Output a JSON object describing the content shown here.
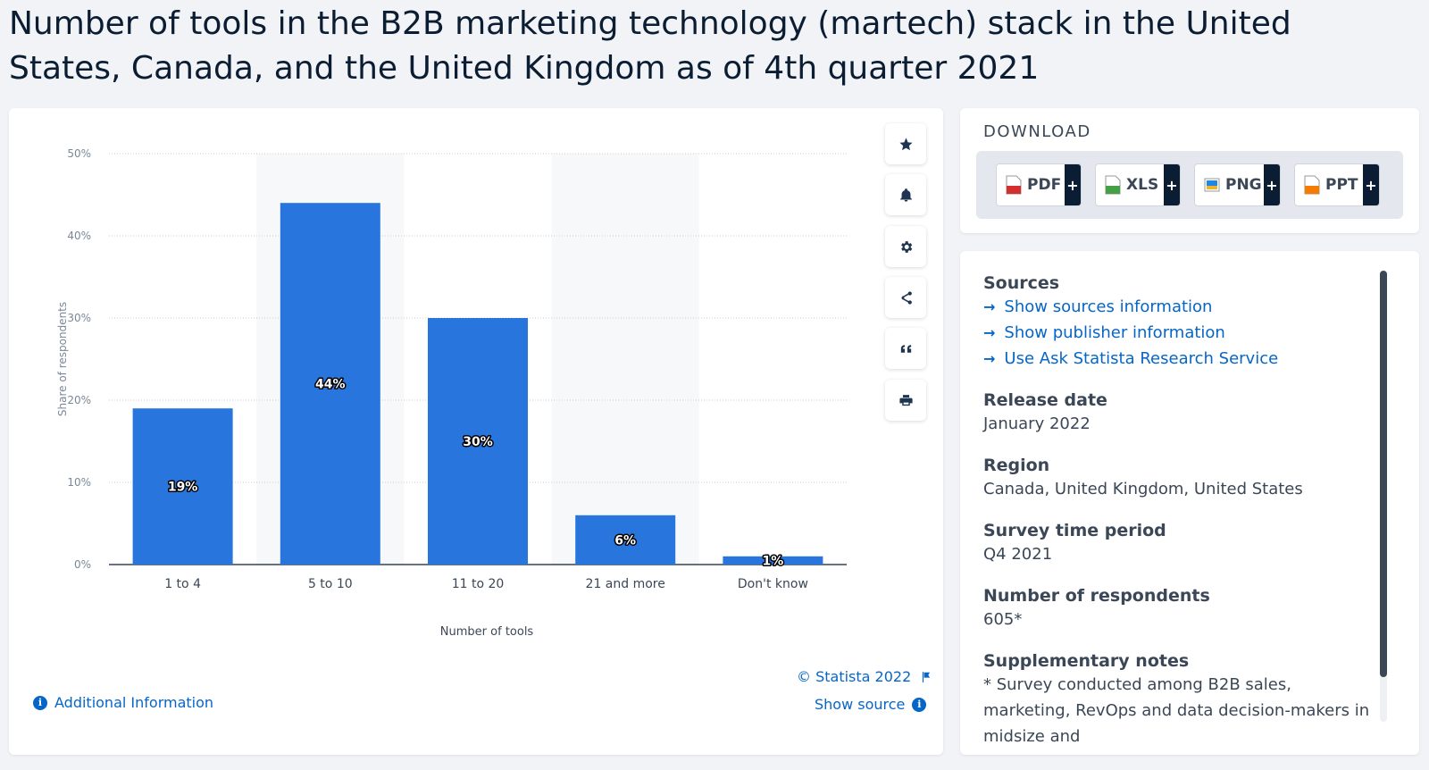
{
  "title": "Number of tools in the B2B marketing technology (martech) stack in the United States, Canada, and the United Kingdom as of 4th quarter 2021",
  "chart_data": {
    "type": "bar",
    "categories": [
      "1 to 4",
      "5 to 10",
      "11 to 20",
      "21 and more",
      "Don't know"
    ],
    "values": [
      19,
      44,
      30,
      6,
      1
    ],
    "value_labels": [
      "19%",
      "44%",
      "30%",
      "6%",
      "1%"
    ],
    "xlabel": "Number of tools",
    "ylabel": "Share of respondents",
    "ylim": [
      0,
      50
    ],
    "yticks": [
      "0%",
      "10%",
      "20%",
      "30%",
      "40%",
      "50%"
    ],
    "bar_color": "#2876dd",
    "grid": true
  },
  "tools": [
    "star-icon",
    "bell-icon",
    "gear-icon",
    "share-icon",
    "quote-icon",
    "print-icon"
  ],
  "footer": {
    "copyright": "© Statista 2022",
    "show_source": "Show source",
    "additional_info": "Additional Information"
  },
  "download": {
    "heading": "DOWNLOAD",
    "buttons": [
      {
        "label": "PDF",
        "icon": "pdf-icon",
        "color": "#d32f2f"
      },
      {
        "label": "XLS",
        "icon": "xls-icon",
        "color": "#43a047"
      },
      {
        "label": "PNG",
        "icon": "png-icon",
        "color": "#1e88e5"
      },
      {
        "label": "PPT",
        "icon": "ppt-icon",
        "color": "#f57c00"
      }
    ],
    "plus": "+"
  },
  "info": {
    "sources_heading": "Sources",
    "links": [
      "Show sources information",
      "Show publisher information",
      "Use Ask Statista Research Service"
    ],
    "release_heading": "Release date",
    "release_value": "January 2022",
    "region_heading": "Region",
    "region_value": "Canada, United Kingdom, United States",
    "period_heading": "Survey time period",
    "period_value": "Q4 2021",
    "respondents_heading": "Number of respondents",
    "respondents_value": "605*",
    "notes_heading": "Supplementary notes",
    "notes_value": "* Survey conducted among B2B sales, marketing, RevOps and data decision-makers in midsize and"
  }
}
